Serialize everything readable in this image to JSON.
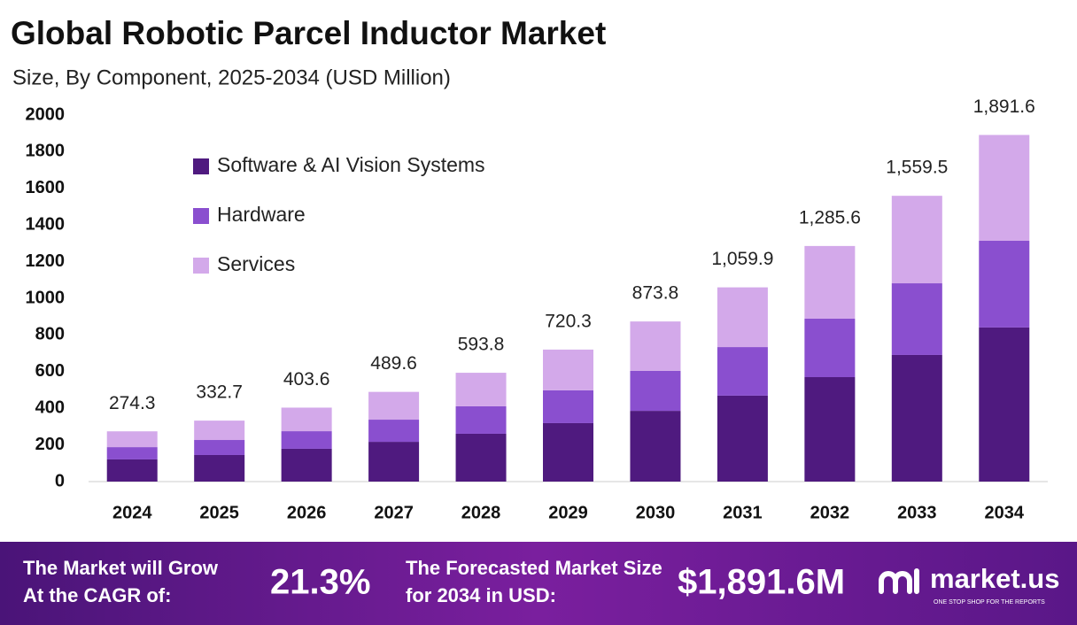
{
  "chart_data": {
    "type": "stacked_bar",
    "title": "Global Robotic Parcel Inductor Market",
    "subtitle": "Size, By Component, 2025-2034 (USD Million)",
    "categories": [
      "2024",
      "2025",
      "2026",
      "2027",
      "2028",
      "2029",
      "2030",
      "2031",
      "2032",
      "2033",
      "2034"
    ],
    "series": [
      {
        "name": "Software & AI Vision Systems",
        "color": "#4f1a7f",
        "values": [
          121,
          145,
          179,
          217,
          261,
          319,
          386,
          469,
          570,
          691,
          841
        ]
      },
      {
        "name": "Hardware",
        "color": "#8a4fcf",
        "values": [
          67,
          82,
          96,
          121,
          150,
          179,
          218,
          265,
          319,
          391,
          473
        ]
      },
      {
        "name": "Services",
        "color": "#d3a9ea",
        "values": [
          86.3,
          105.7,
          128.6,
          151.6,
          182.8,
          222.3,
          269.8,
          325.9,
          396.6,
          477.5,
          577.6
        ]
      }
    ],
    "totals": [
      274.3,
      332.7,
      403.6,
      489.6,
      593.8,
      720.3,
      873.8,
      1059.9,
      1285.6,
      1559.5,
      1891.6
    ],
    "total_labels": [
      "274.3",
      "332.7",
      "403.6",
      "489.6",
      "593.8",
      "720.3",
      "873.8",
      "1,059.9",
      "1,285.6",
      "1,559.5",
      "1,891.6"
    ],
    "ylim": [
      0,
      2000
    ],
    "yticks": [
      0,
      200,
      400,
      600,
      800,
      1000,
      1200,
      1400,
      1600,
      1800,
      2000
    ],
    "grid": false,
    "legend_position": "top-left"
  },
  "footer": {
    "cagr_text": "The Market will Grow At the CAGR of:",
    "cagr_value": "21.3%",
    "forecast_text": "The Forecasted Market Size for 2034 in USD:",
    "forecast_value": "$1,891.6M",
    "brand": "market.us",
    "tagline": "ONE STOP SHOP FOR THE REPORTS"
  }
}
